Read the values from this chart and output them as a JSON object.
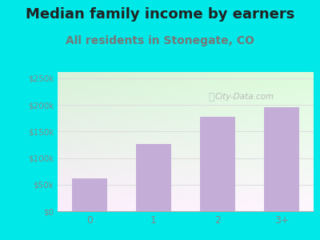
{
  "title": "Median family income by earners",
  "subtitle": "All residents in Stonegate, CO",
  "categories": [
    "0",
    "1",
    "2",
    "3+"
  ],
  "values": [
    62000,
    127000,
    178000,
    195000
  ],
  "bar_color": "#c4aed8",
  "background_color": "#00e8e8",
  "plot_bg_color_top_left": "#d8f0d8",
  "plot_bg_color_right": "#f8f8f8",
  "title_fontsize": 13,
  "subtitle_fontsize": 10,
  "title_color": "#222222",
  "subtitle_color": "#777777",
  "ytick_labels": [
    "$0",
    "$50k",
    "$100k",
    "$150k",
    "$200k",
    "$250k"
  ],
  "ytick_values": [
    0,
    50000,
    100000,
    150000,
    200000,
    250000
  ],
  "ylim": [
    0,
    262000
  ],
  "watermark": "City-Data.com",
  "tick_color": "#888888",
  "grid_color": "#dddddd"
}
